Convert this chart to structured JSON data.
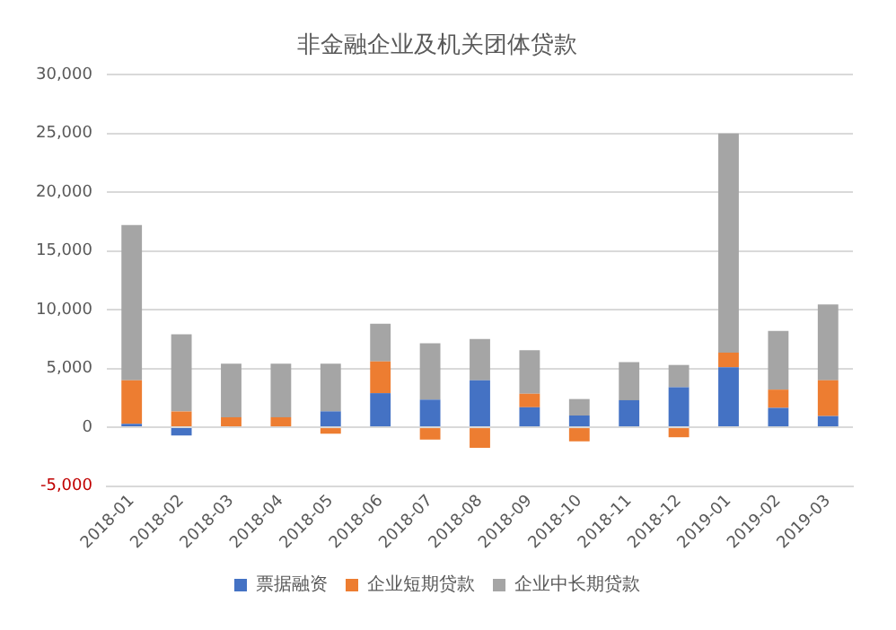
{
  "chart_data": {
    "type": "bar",
    "title": "非金融企业及机关团体贷款",
    "stacked": true,
    "categories": [
      "2018-01",
      "2018-02",
      "2018-03",
      "2018-04",
      "2018-05",
      "2018-06",
      "2018-07",
      "2018-08",
      "2018-09",
      "2018-10",
      "2018-11",
      "2018-12",
      "2019-01",
      "2019-02",
      "2019-03"
    ],
    "series": [
      {
        "name": "票据融资",
        "color": "#4472c4",
        "values": [
          300,
          -700,
          0,
          0,
          1350,
          2900,
          2350,
          4000,
          1700,
          1000,
          2300,
          3400,
          5100,
          1650,
          950
        ]
      },
      {
        "name": "企业短期贷款",
        "color": "#ed7d31",
        "values": [
          3700,
          1350,
          850,
          850,
          -550,
          2700,
          -1050,
          -1750,
          1150,
          -1200,
          0,
          -850,
          1250,
          1550,
          3050
        ]
      },
      {
        "name": "企业中长期贷款",
        "color": "#a5a5a5",
        "values": [
          13200,
          6550,
          4550,
          4550,
          4050,
          3200,
          4800,
          3500,
          3700,
          1400,
          3250,
          1900,
          18650,
          5000,
          6450
        ]
      }
    ],
    "ylim": [
      -5000,
      30000
    ],
    "yticks": [
      {
        "value": -5000,
        "label": "-5,000"
      },
      0,
      {
        "value": 5000,
        "label": "5,000"
      },
      {
        "value": 10000,
        "label": "10,000"
      },
      {
        "value": 15000,
        "label": "15,000"
      },
      {
        "value": 20000,
        "label": "20,000"
      },
      {
        "value": 25000,
        "label": "25,000"
      },
      {
        "value": 30000,
        "label": "30,000"
      }
    ],
    "grid": "y",
    "legend": "bottom"
  }
}
